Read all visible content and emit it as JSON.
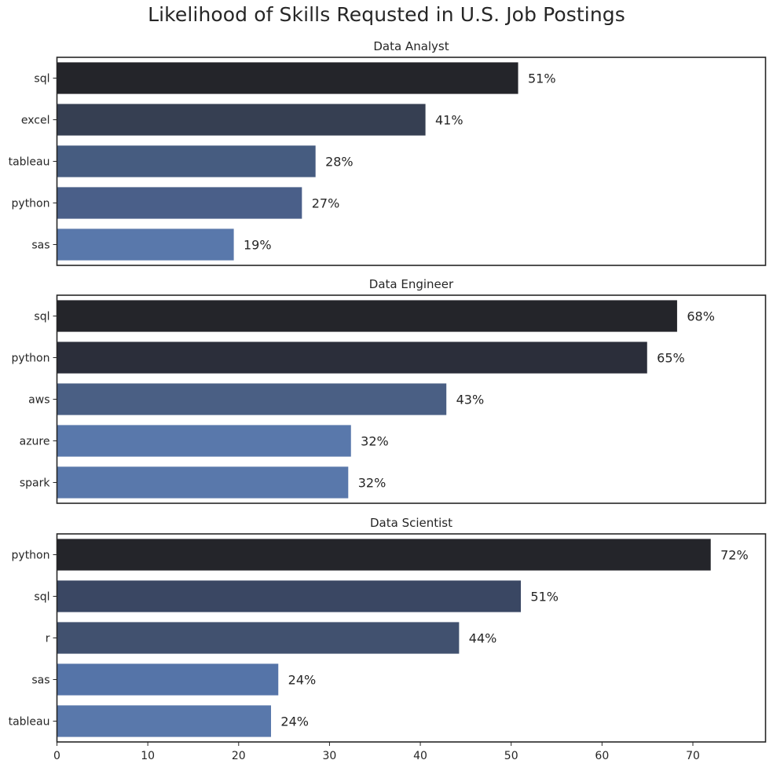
{
  "chart_data": {
    "title": "Likelihood of Skills Requsted in U.S. Job Postings",
    "xlim": [
      0,
      78
    ],
    "xticks": [
      0,
      10,
      20,
      30,
      40,
      50,
      60,
      70
    ],
    "grid": false,
    "value_suffix": "%",
    "colors": {
      "palette_dark": "#24252a",
      "palette_light": "#5978ab",
      "text": "#262626",
      "axis": "#262626"
    },
    "panels": [
      {
        "type": "bar",
        "orientation": "horizontal",
        "title": "Data Analyst",
        "categories": [
          "sql",
          "excel",
          "tableau",
          "python",
          "sas"
        ],
        "values": [
          50.8,
          40.6,
          28.5,
          27.0,
          19.5
        ],
        "labels": [
          "51%",
          "41%",
          "28%",
          "27%",
          "19%"
        ],
        "colors": [
          "#24252a",
          "#363f52",
          "#465c80",
          "#4a5f89",
          "#5978ab"
        ]
      },
      {
        "type": "bar",
        "orientation": "horizontal",
        "title": "Data Engineer",
        "categories": [
          "sql",
          "python",
          "aws",
          "azure",
          "spark"
        ],
        "values": [
          68.3,
          65.0,
          42.9,
          32.4,
          32.1
        ],
        "labels": [
          "68%",
          "65%",
          "43%",
          "32%",
          "32%"
        ],
        "colors": [
          "#24252a",
          "#2b2e3a",
          "#4a5f84",
          "#5978ab",
          "#5978ab"
        ]
      },
      {
        "type": "bar",
        "orientation": "horizontal",
        "title": "Data Scientist",
        "categories": [
          "python",
          "sql",
          "r",
          "sas",
          "tableau"
        ],
        "values": [
          72.0,
          51.1,
          44.3,
          24.4,
          23.6
        ],
        "labels": [
          "72%",
          "51%",
          "44%",
          "24%",
          "24%"
        ],
        "colors": [
          "#24252a",
          "#3a4763",
          "#41516f",
          "#5574a8",
          "#5978ab"
        ]
      }
    ]
  }
}
